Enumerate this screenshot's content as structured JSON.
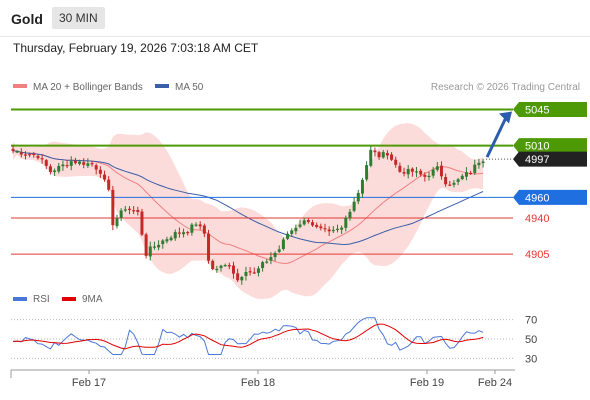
{
  "header": {
    "asset": "Gold",
    "interval": "30 MIN"
  },
  "datetime": "Thursday, February 19, 2026 7:03:18 AM CET",
  "legend": {
    "ma20": "MA 20 + Bollinger Bands",
    "ma50": "MA 50",
    "credit": "Research © 2026 Trading Central",
    "rsi": "RSI",
    "rsi_ma": "9MA"
  },
  "colors": {
    "up": "#2e7d32",
    "down": "#c62828",
    "band": "#fcd6d3",
    "ma20": "#f08080",
    "ma50": "#3a5ea8",
    "resistance": "#4e9a06",
    "support_main": "#1f6fe0",
    "support": "#e53935",
    "rsi": "#4a78d8",
    "rsi_ma": "#e00000",
    "arrow": "#2b5cad"
  },
  "chart_data": {
    "type": "candlestick",
    "price_axis": {
      "min": 4880,
      "max": 5060
    },
    "x_axis": {
      "ticks": [
        "Feb 17",
        "Feb 18",
        "Feb 19",
        "Feb 24"
      ]
    },
    "levels": [
      {
        "label": "5045",
        "value": 5045,
        "kind": "resistance"
      },
      {
        "label": "5010",
        "value": 5010,
        "kind": "resistance"
      },
      {
        "label": "4997",
        "value": 4997,
        "kind": "last"
      },
      {
        "label": "4960",
        "value": 4960,
        "kind": "pivot"
      },
      {
        "label": "4940",
        "value": 4940,
        "kind": "support"
      },
      {
        "label": "4905",
        "value": 4905,
        "kind": "support"
      }
    ],
    "anchors": [
      [
        0,
        5005
      ],
      [
        6,
        5000
      ],
      [
        9,
        4985
      ],
      [
        14,
        4995
      ],
      [
        19,
        4992
      ],
      [
        21,
        4985
      ],
      [
        23,
        4965
      ],
      [
        24,
        4935
      ],
      [
        27,
        4950
      ],
      [
        30,
        4945
      ],
      [
        32,
        4905
      ],
      [
        33,
        4910
      ],
      [
        36,
        4918
      ],
      [
        39,
        4925
      ],
      [
        42,
        4928
      ],
      [
        44,
        4935
      ],
      [
        46,
        4925
      ],
      [
        47,
        4900
      ],
      [
        48,
        4890
      ],
      [
        52,
        4895
      ],
      [
        54,
        4880
      ],
      [
        56,
        4890
      ],
      [
        58,
        4886
      ],
      [
        60,
        4895
      ],
      [
        64,
        4910
      ],
      [
        66,
        4925
      ],
      [
        69,
        4935
      ],
      [
        71,
        4938
      ],
      [
        73,
        4930
      ],
      [
        76,
        4925
      ],
      [
        79,
        4930
      ],
      [
        80,
        4940
      ],
      [
        83,
        4965
      ],
      [
        86,
        5005
      ],
      [
        88,
        5000
      ],
      [
        90,
        5003
      ],
      [
        93,
        4985
      ],
      [
        96,
        4985
      ],
      [
        99,
        4980
      ],
      [
        102,
        4988
      ],
      [
        104,
        4975
      ],
      [
        106,
        4973
      ],
      [
        108,
        4980
      ],
      [
        110,
        4985
      ],
      [
        112,
        4995
      ],
      [
        113,
        4997
      ]
    ],
    "rsi_axis": {
      "min": 20,
      "max": 80,
      "ticks": [
        70,
        50,
        30
      ]
    }
  }
}
